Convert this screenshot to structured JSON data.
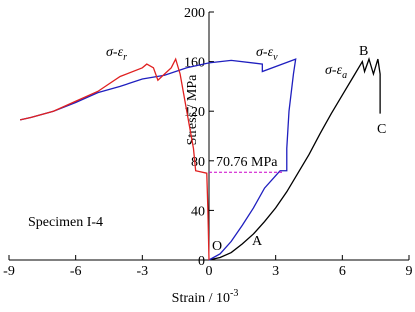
{
  "chart_data": {
    "type": "line",
    "x_label": "Strain / 10",
    "x_label_sup": "-3",
    "y_label": "Stress / MPa",
    "xlim": [
      -9,
      9
    ],
    "xticks": [
      -9,
      -6,
      -3,
      0,
      3,
      6,
      9
    ],
    "ylim": [
      0,
      200
    ],
    "yticks": [
      0,
      40,
      80,
      120,
      160,
      200
    ],
    "grid": false,
    "series": [
      {
        "name": "σ-ε",
        "sub": "a",
        "color": "#000000",
        "x": [
          0,
          0.5,
          1,
          1.5,
          2,
          2.5,
          3,
          3.5,
          4,
          4.5,
          5,
          5.5,
          6,
          6.5,
          6.9,
          7.0,
          7.2,
          7.4,
          7.6,
          7.7,
          7.7
        ],
        "values": [
          0,
          2,
          6,
          13,
          21,
          31,
          42,
          55,
          70,
          85,
          102,
          118,
          133,
          148,
          160,
          152,
          162,
          150,
          162,
          150,
          118
        ]
      },
      {
        "name": "σ-ε",
        "sub": "v",
        "color": "#1f1fbf",
        "x": [
          0,
          0.5,
          1,
          1.5,
          2,
          2.5,
          3,
          3.2,
          3.5,
          3.5,
          3.6,
          3.8,
          3.9,
          2.4,
          2.4,
          1,
          0,
          -1,
          -2,
          -3,
          -4,
          -5,
          -6,
          -7,
          -8,
          -8.5
        ],
        "values": [
          0,
          5,
          15,
          28,
          42,
          58,
          68,
          72,
          72,
          90,
          120,
          150,
          162,
          152,
          158,
          161,
          159,
          155,
          149,
          146,
          140,
          135,
          127,
          120,
          115,
          113
        ]
      },
      {
        "name": "σ-ε",
        "sub": "r",
        "color": "#e02020",
        "x": [
          0,
          -0.05,
          -0.1,
          -0.6,
          -0.7,
          -1,
          -1.3,
          -1.5,
          -1.7,
          -2,
          -2.3,
          -2.5,
          -2.8,
          -3,
          -4,
          -5,
          -6,
          -7,
          -8,
          -8.5
        ],
        "values": [
          0,
          40,
          70,
          72,
          90,
          120,
          150,
          162,
          155,
          150,
          145,
          155,
          158,
          155,
          148,
          136,
          128,
          120,
          115,
          113
        ]
      }
    ],
    "threshold": {
      "value": 70.76,
      "label": "70.76 MPa",
      "x_end": 3.3,
      "color": "#cc00cc"
    },
    "points": [
      "O",
      "A",
      "B",
      "C"
    ],
    "specimen": "Specimen I-4"
  }
}
